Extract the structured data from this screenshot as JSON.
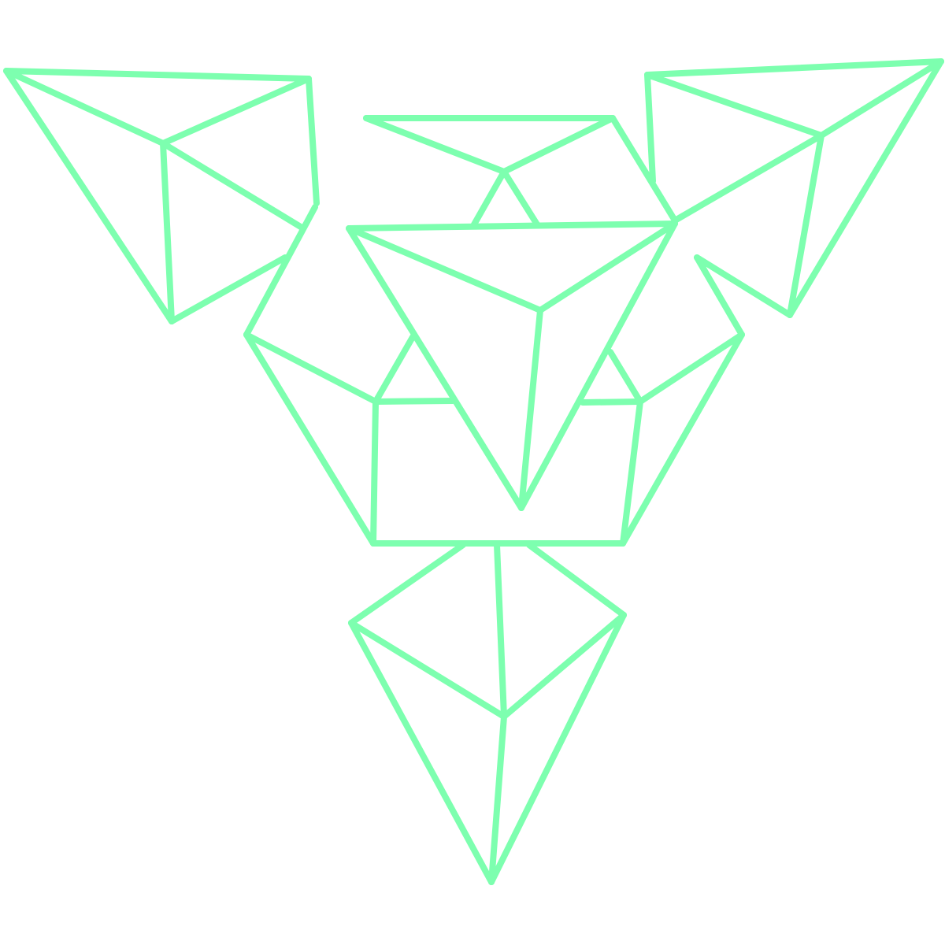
{
  "artwork": {
    "kind": "geometric line-art ornament",
    "colors": {
      "stroke": "#7DFFAF",
      "background": "#FFFFFF"
    }
  }
}
